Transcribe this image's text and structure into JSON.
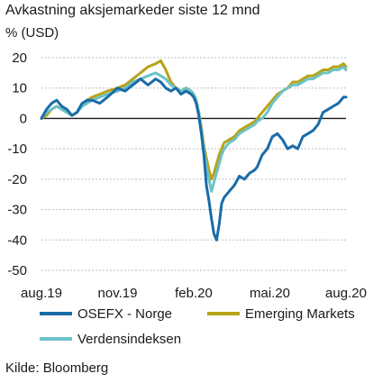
{
  "page": {
    "title": "Avkastning aksjemarkeder siste 12 mnd",
    "source": "Kilde: Bloomberg"
  },
  "chart_data": {
    "type": "line",
    "title": "Avkastning aksjemarkeder siste 12 mnd",
    "ylabel": "% (USD)",
    "xlabel": "",
    "ylim": [
      -50,
      20
    ],
    "yticks": [
      20,
      10,
      0,
      -10,
      -20,
      -30,
      -40,
      -50
    ],
    "x_range": [
      0,
      12
    ],
    "xticks": [
      {
        "pos": 0,
        "label": "aug.19"
      },
      {
        "pos": 3,
        "label": "nov.19"
      },
      {
        "pos": 6,
        "label": "feb.20"
      },
      {
        "pos": 9,
        "label": "mai.20"
      },
      {
        "pos": 12,
        "label": "aug.20"
      }
    ],
    "grid": "horizontal",
    "legend": "bottom",
    "series": [
      {
        "name": "OSEFX - Norge",
        "color": "#1a6ca8",
        "x": [
          0,
          0.2,
          0.4,
          0.6,
          0.8,
          1.0,
          1.2,
          1.4,
          1.6,
          1.8,
          2.0,
          2.3,
          2.6,
          3.0,
          3.3,
          3.6,
          3.9,
          4.2,
          4.5,
          4.7,
          4.9,
          5.1,
          5.3,
          5.5,
          5.7,
          5.9,
          6.0,
          6.1,
          6.2,
          6.3,
          6.4,
          6.5,
          6.6,
          6.7,
          6.8,
          6.9,
          7.0,
          7.1,
          7.2,
          7.4,
          7.6,
          7.8,
          8.0,
          8.2,
          8.4,
          8.5,
          8.7,
          8.9,
          9.1,
          9.3,
          9.5,
          9.7,
          9.9,
          10.1,
          10.3,
          10.5,
          10.7,
          10.9,
          11.1,
          11.3,
          11.5,
          11.7,
          11.9,
          12.0
        ],
        "values": [
          0,
          3,
          5,
          6,
          4,
          3,
          1,
          2,
          5,
          6,
          6,
          5,
          7,
          10,
          9,
          11,
          13,
          11,
          13,
          12,
          10,
          9,
          10,
          8,
          9,
          8,
          7,
          5,
          1,
          -5,
          -12,
          -22,
          -27,
          -33,
          -38,
          -40,
          -35,
          -28,
          -26,
          -24,
          -22,
          -19,
          -20,
          -18,
          -17,
          -16,
          -12,
          -10,
          -6,
          -5,
          -7,
          -10,
          -9,
          -10,
          -6,
          -5,
          -4,
          -2,
          2,
          3,
          4,
          5,
          7,
          7
        ]
      },
      {
        "name": "Emerging Markets",
        "color": "#b8a319",
        "x": [
          0,
          0.2,
          0.4,
          0.6,
          0.8,
          1.0,
          1.2,
          1.4,
          1.6,
          1.8,
          2.0,
          2.3,
          2.6,
          3.0,
          3.3,
          3.6,
          3.9,
          4.2,
          4.5,
          4.7,
          4.9,
          5.1,
          5.3,
          5.5,
          5.7,
          5.9,
          6.0,
          6.1,
          6.2,
          6.3,
          6.4,
          6.5,
          6.6,
          6.7,
          6.8,
          6.9,
          7.0,
          7.1,
          7.2,
          7.4,
          7.6,
          7.8,
          8.0,
          8.2,
          8.4,
          8.5,
          8.7,
          8.9,
          9.1,
          9.3,
          9.5,
          9.7,
          9.9,
          10.1,
          10.3,
          10.5,
          10.7,
          10.9,
          11.1,
          11.3,
          11.5,
          11.7,
          11.9,
          12.0
        ],
        "values": [
          0,
          1,
          3,
          4,
          3,
          2,
          1,
          2,
          4,
          6,
          7,
          8,
          9,
          10,
          11,
          13,
          15,
          17,
          18,
          19,
          16,
          12,
          10,
          9,
          10,
          9,
          8,
          6,
          2,
          -3,
          -9,
          -13,
          -17,
          -20,
          -18,
          -15,
          -12,
          -10,
          -8,
          -7,
          -6,
          -4,
          -3,
          -2,
          -1,
          0,
          2,
          4,
          6,
          8,
          9,
          10,
          12,
          12,
          13,
          14,
          14,
          15,
          16,
          16,
          17,
          17,
          18,
          17
        ]
      },
      {
        "name": "Verdensindeksen",
        "color": "#6cc3c6",
        "x": [
          0,
          0.2,
          0.4,
          0.6,
          0.8,
          1.0,
          1.2,
          1.4,
          1.6,
          1.8,
          2.0,
          2.3,
          2.6,
          3.0,
          3.3,
          3.6,
          3.9,
          4.2,
          4.5,
          4.7,
          4.9,
          5.1,
          5.3,
          5.5,
          5.7,
          5.9,
          6.0,
          6.1,
          6.2,
          6.3,
          6.4,
          6.5,
          6.6,
          6.7,
          6.8,
          6.9,
          7.0,
          7.1,
          7.2,
          7.4,
          7.6,
          7.8,
          8.0,
          8.2,
          8.4,
          8.5,
          8.7,
          8.9,
          9.1,
          9.3,
          9.5,
          9.7,
          9.9,
          10.1,
          10.3,
          10.5,
          10.7,
          10.9,
          11.1,
          11.3,
          11.5,
          11.7,
          11.9,
          12.0
        ],
        "values": [
          0,
          2,
          3,
          4,
          3,
          2,
          1,
          2,
          4,
          5,
          6,
          7,
          8,
          9,
          10,
          12,
          13,
          14,
          15,
          14,
          13,
          11,
          10,
          9,
          10,
          9,
          8,
          6,
          2,
          -4,
          -10,
          -16,
          -20,
          -24,
          -21,
          -18,
          -15,
          -12,
          -10,
          -8,
          -7,
          -5,
          -4,
          -3,
          -2,
          -1,
          0,
          2,
          5,
          7,
          9,
          10,
          11,
          11,
          12,
          13,
          13,
          14,
          15,
          15,
          16,
          16,
          17,
          16
        ]
      }
    ]
  }
}
